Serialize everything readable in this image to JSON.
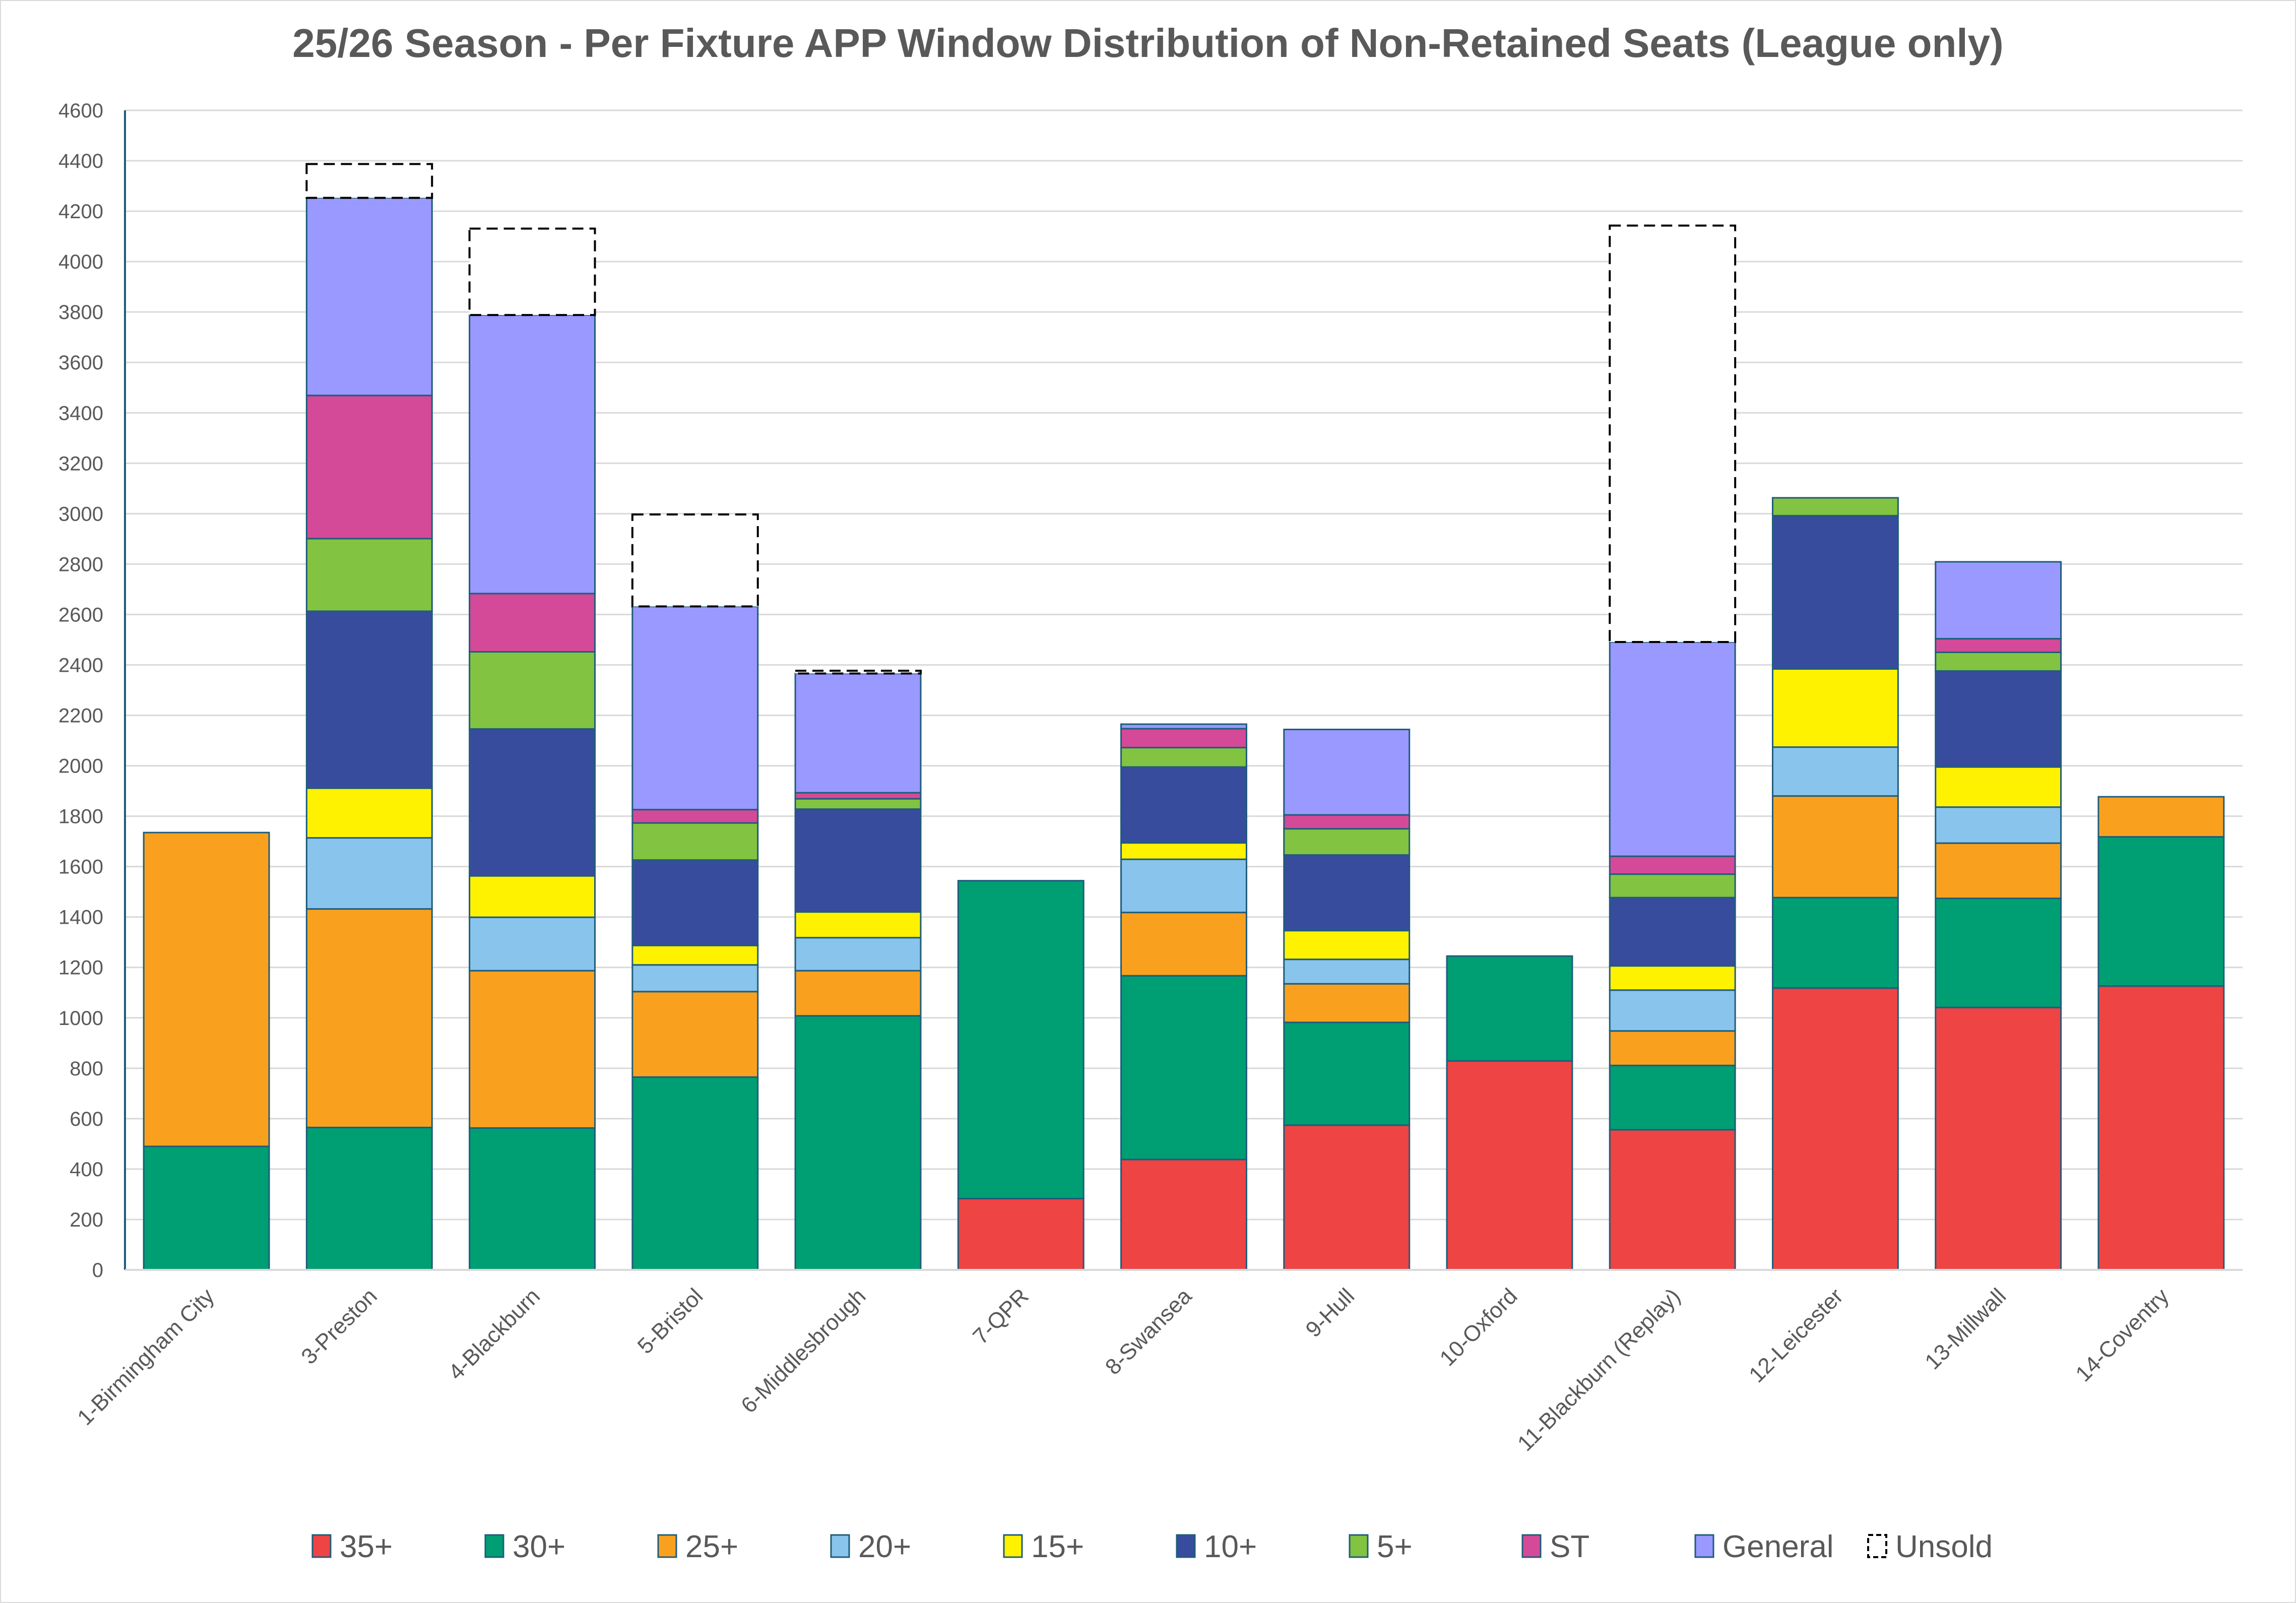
{
  "chart_data": {
    "type": "bar",
    "stacked": true,
    "title": "25/26 Season - Per Fixture APP Window Distribution of Non-Retained Seats (League only)",
    "xlabel": "",
    "ylabel": "",
    "ylim": [
      0,
      4600
    ],
    "yticks": [
      0,
      200,
      400,
      600,
      800,
      1000,
      1200,
      1400,
      1600,
      1800,
      2000,
      2200,
      2400,
      2600,
      2800,
      3000,
      3200,
      3400,
      3600,
      3800,
      4000,
      4200,
      4400,
      4600
    ],
    "grid": true,
    "legend_position": "bottom",
    "categories": [
      "1-Birmingham City",
      "3-Preston",
      "4-Blackburn",
      "5-Bristol",
      "6-Middlesbrough",
      "7-QPR",
      "8-Swansea",
      "9-Hull",
      "10-Oxford",
      "11-Blackburn (Replay)",
      "12-Leicester",
      "13-Millwall",
      "14-Coventry"
    ],
    "series": [
      {
        "name": "35+",
        "color": "#EE4444",
        "values": [
          0,
          0,
          0,
          0,
          0,
          283,
          438,
          574,
          829,
          556,
          1118,
          1041,
          1126
        ]
      },
      {
        "name": "30+",
        "color": "#009E73",
        "values": [
          490,
          565,
          563,
          765,
          1008,
          1261,
          729,
          408,
          416,
          255,
          359,
          433,
          592
        ]
      },
      {
        "name": "25+",
        "color": "#F9A11F",
        "values": [
          1245,
          867,
          624,
          339,
          179,
          0,
          251,
          153,
          0,
          137,
          403,
          219,
          159
        ]
      },
      {
        "name": "20+",
        "color": "#89C4EC",
        "values": [
          0,
          282,
          212,
          106,
          131,
          0,
          211,
          97,
          0,
          162,
          194,
          143,
          0
        ]
      },
      {
        "name": "15+",
        "color": "#FFF200",
        "values": [
          0,
          197,
          164,
          77,
          102,
          0,
          65,
          114,
          0,
          96,
          310,
          159,
          0
        ]
      },
      {
        "name": "10+",
        "color": "#384C9E",
        "values": [
          0,
          702,
          583,
          339,
          408,
          0,
          301,
          300,
          0,
          271,
          608,
          381,
          0
        ]
      },
      {
        "name": "5+",
        "color": "#82C341",
        "values": [
          0,
          288,
          306,
          147,
          41,
          0,
          77,
          104,
          0,
          93,
          71,
          74,
          0
        ]
      },
      {
        "name": "ST",
        "color": "#D44A98",
        "values": [
          0,
          568,
          231,
          53,
          24,
          0,
          75,
          55,
          0,
          71,
          0,
          54,
          0
        ]
      },
      {
        "name": "General",
        "color": "#9999FF",
        "values": [
          0,
          784,
          1105,
          806,
          473,
          0,
          18,
          339,
          0,
          850,
          0,
          305,
          0
        ]
      },
      {
        "name": "Unsold",
        "color": "#FFFFFF",
        "dashed": true,
        "values": [
          0,
          134,
          343,
          365,
          11,
          0,
          0,
          0,
          0,
          1652,
          0,
          0,
          0
        ]
      }
    ]
  }
}
